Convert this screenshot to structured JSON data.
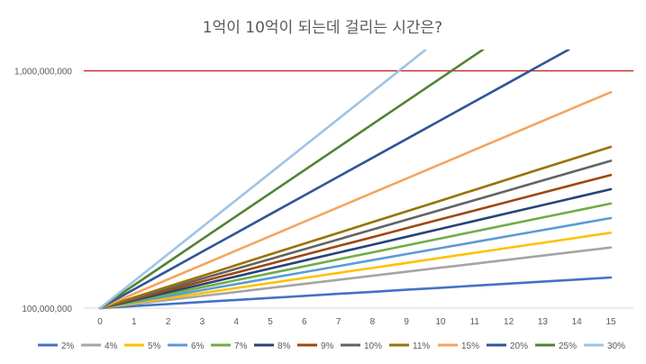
{
  "chart_data": {
    "type": "line",
    "title": "1억이 10억이 되는데 걸리는 시간은?",
    "x_ticks": [
      "0",
      "1",
      "2",
      "3",
      "4",
      "5",
      "6",
      "7",
      "8",
      "9",
      "10",
      "11",
      "12",
      "13",
      "14",
      "15"
    ],
    "xlim": [
      0,
      15
    ],
    "y_scale": "log",
    "ylim": [
      100000000,
      1230000000
    ],
    "y_ticks": [
      {
        "value": 100000000,
        "label": "100,000,000"
      },
      {
        "value": 1000000000,
        "label": "1,000,000,000"
      }
    ],
    "reference_line": {
      "value": 1000000000,
      "color": "#C00000"
    },
    "grid": false,
    "legend_position": "bottom",
    "initial_value": 100000000,
    "series": [
      {
        "name": "2%",
        "rate": 0.02,
        "color": "#4472C4"
      },
      {
        "name": "4%",
        "rate": 0.04,
        "color": "#A5A5A5"
      },
      {
        "name": "5%",
        "rate": 0.05,
        "color": "#FFC000"
      },
      {
        "name": "6%",
        "rate": 0.06,
        "color": "#5B9BD5"
      },
      {
        "name": "7%",
        "rate": 0.07,
        "color": "#70AD47"
      },
      {
        "name": "8%",
        "rate": 0.08,
        "color": "#264478"
      },
      {
        "name": "9%",
        "rate": 0.09,
        "color": "#9E480E"
      },
      {
        "name": "10%",
        "rate": 0.1,
        "color": "#636363"
      },
      {
        "name": "11%",
        "rate": 0.11,
        "color": "#997300"
      },
      {
        "name": "15%",
        "rate": 0.15,
        "color": "#F4A460"
      },
      {
        "name": "20%",
        "rate": 0.2,
        "color": "#2F5597"
      },
      {
        "name": "25%",
        "rate": 0.25,
        "color": "#548235"
      },
      {
        "name": "30%",
        "rate": 0.3,
        "color": "#9DC3E6"
      }
    ]
  }
}
